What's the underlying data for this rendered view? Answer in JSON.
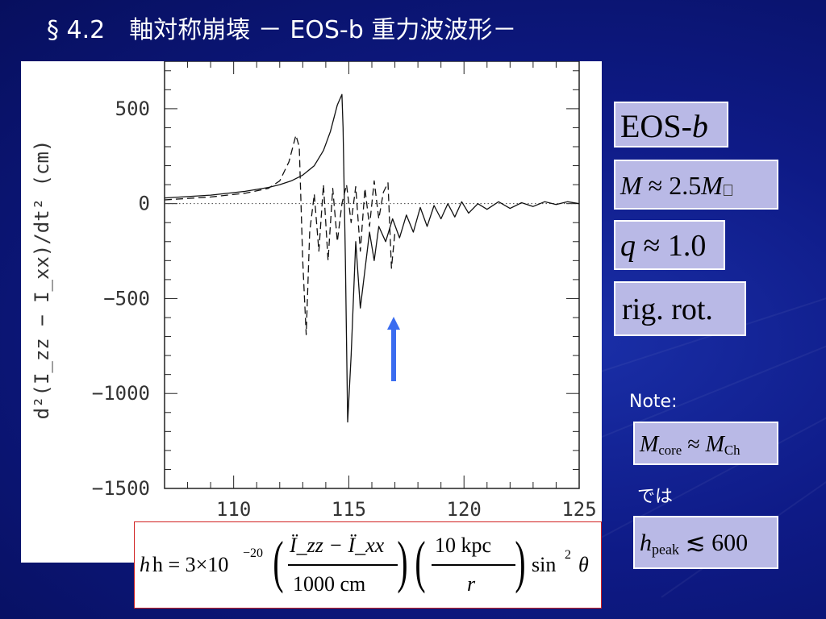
{
  "slide": {
    "title": "§ 4.2　軸対称崩壊 － EOS-b 重力波波形－"
  },
  "chart_data": {
    "type": "line",
    "ylabel": "d²(I_zz − I_xx)/dt² (cm)",
    "xlabel": "",
    "xlim": [
      107,
      125
    ],
    "ylim": [
      -1500,
      750
    ],
    "x_ticks": [
      110,
      115,
      120,
      125
    ],
    "y_ticks": [
      500,
      0,
      -500,
      -1000,
      -1500
    ],
    "grid": false,
    "zero_reference_line": "dotted",
    "series": [
      {
        "style": "solid",
        "x": [
          107,
          109,
          110.5,
          111.5,
          112,
          112.5,
          113,
          113.5,
          113.9,
          114.2,
          114.5,
          114.7,
          114.75,
          114.85,
          114.95,
          115.1,
          115.3,
          115.5,
          115.7,
          115.9,
          116.1,
          116.3,
          116.6,
          116.9,
          117.2,
          117.5,
          117.8,
          118.1,
          118.4,
          118.7,
          119,
          119.3,
          119.6,
          119.9,
          120.2,
          120.6,
          121,
          121.5,
          122,
          122.5,
          123,
          123.5,
          124,
          124.5,
          125
        ],
        "y": [
          30,
          45,
          65,
          85,
          100,
          120,
          150,
          200,
          280,
          380,
          520,
          575,
          400,
          -300,
          -1150,
          -800,
          -200,
          -550,
          -350,
          -150,
          -300,
          -120,
          -200,
          -80,
          -180,
          -60,
          -150,
          -20,
          -120,
          -10,
          -80,
          0,
          -70,
          10,
          -50,
          0,
          -30,
          10,
          -25,
          5,
          -15,
          10,
          -5,
          10,
          0
        ]
      },
      {
        "style": "dashed",
        "x": [
          107,
          109,
          110.5,
          111.5,
          112,
          112.4,
          112.7,
          112.85,
          113,
          113.15,
          113.3,
          113.5,
          113.7,
          113.9,
          114.1,
          114.3,
          114.5,
          114.7,
          114.9,
          115.1,
          115.3,
          115.5,
          115.7,
          115.9,
          116.1,
          116.3,
          116.5,
          116.7,
          116.85,
          117
        ],
        "y": [
          20,
          35,
          55,
          80,
          120,
          220,
          360,
          300,
          -300,
          -690,
          -150,
          50,
          -250,
          100,
          -300,
          80,
          -200,
          0,
          100,
          -100,
          90,
          -250,
          80,
          -120,
          120,
          -80,
          60,
          110,
          -340,
          -150
        ]
      }
    ],
    "annotation": "arrow at x≈117"
  },
  "info_boxes": {
    "eos": {
      "prefix": "EOS-",
      "suffix": "b"
    },
    "mass": {
      "symbol": "M",
      "approx": " ≈ 2.5",
      "unit": "M",
      "sub": ""
    },
    "q": {
      "symbol": "q",
      "value": " ≈ 1.0"
    },
    "rotation": {
      "text": "rig. rot."
    },
    "note_label": "Note:",
    "mcore": {
      "symbol": "M",
      "sub": "core",
      "approx": " ≈ ",
      "symbol2": "M",
      "sub2": "Ch"
    },
    "deha": "では",
    "hpeak": {
      "symbol": "h",
      "sub": "peak",
      "relation": " ≲ ",
      "value": "600"
    }
  },
  "formula": {
    "lhs": "h = 3×10",
    "exp": "−20",
    "num1": "Ï_zz − Ï_xx",
    "den1": "1000 cm",
    "num2": "10 kpc",
    "den2": "r",
    "trig": "sin",
    "trig_exp": "2",
    "angle": "θ"
  },
  "colors": {
    "background": "#0e1a86",
    "box_fill": "#b9b9e6",
    "arrow": "#3a6cf0",
    "formula_border": "#d02020"
  }
}
